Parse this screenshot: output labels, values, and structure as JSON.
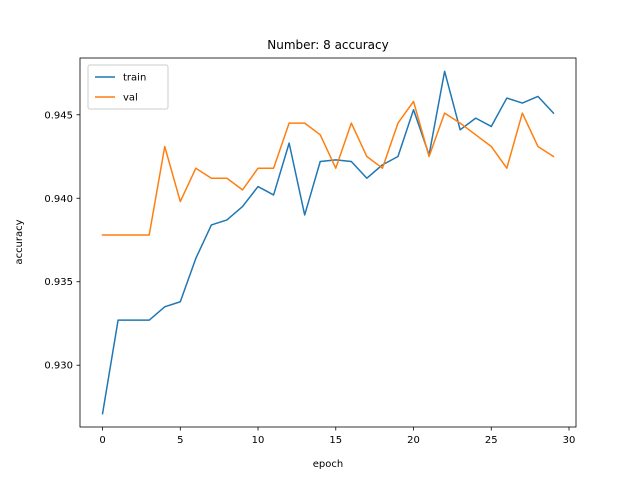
{
  "chart_data": {
    "type": "line",
    "title": "Number: 8 accuracy",
    "xlabel": "epoch",
    "ylabel": "accuracy",
    "xlim": [
      -1.45,
      30.45
    ],
    "ylim": [
      0.9263,
      0.9484
    ],
    "xticks": [
      0,
      5,
      10,
      15,
      20,
      25,
      30
    ],
    "xtick_labels": [
      "0",
      "5",
      "10",
      "15",
      "20",
      "25",
      "30"
    ],
    "yticks": [
      0.93,
      0.935,
      0.94,
      0.945
    ],
    "ytick_labels": [
      "0.930",
      "0.935",
      "0.940",
      "0.945"
    ],
    "grid": false,
    "legend_position": "upper-left",
    "x": [
      0,
      1,
      2,
      3,
      4,
      5,
      6,
      7,
      8,
      9,
      10,
      11,
      12,
      13,
      14,
      15,
      16,
      17,
      18,
      19,
      20,
      21,
      22,
      23,
      24,
      25,
      26,
      27,
      28,
      29
    ],
    "series": [
      {
        "name": "train",
        "color": "#1f77b4",
        "values": [
          0.9271,
          0.9327,
          0.9327,
          0.9327,
          0.9335,
          0.9338,
          0.9364,
          0.9384,
          0.9387,
          0.9395,
          0.9407,
          0.9402,
          0.9433,
          0.939,
          0.9422,
          0.9423,
          0.9422,
          0.9412,
          0.942,
          0.9425,
          0.9453,
          0.9426,
          0.9476,
          0.9441,
          0.9448,
          0.9443,
          0.946,
          0.9457,
          0.9461,
          0.9451
        ]
      },
      {
        "name": "val",
        "color": "#ff7f0e",
        "values": [
          0.9378,
          0.9378,
          0.9378,
          0.9378,
          0.9431,
          0.9398,
          0.9418,
          0.9412,
          0.9412,
          0.9405,
          0.9418,
          0.9418,
          0.9445,
          0.9445,
          0.9438,
          0.9418,
          0.9445,
          0.9425,
          0.9418,
          0.9445,
          0.9458,
          0.9425,
          0.9451,
          0.9445,
          0.9438,
          0.9431,
          0.9418,
          0.9451,
          0.9431,
          0.9425
        ]
      }
    ]
  }
}
